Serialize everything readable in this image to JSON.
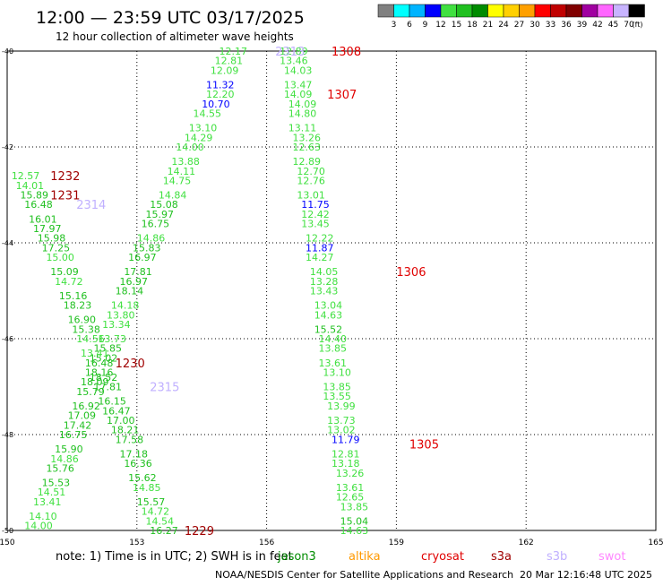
{
  "header": {
    "title": "12:00 — 23:59 UTC 03/17/2025",
    "subtitle": "12 hour collection of altimeter wave heights"
  },
  "legend": {
    "colors": [
      "#808080",
      "#00ffff",
      "#00b4ff",
      "#0000ff",
      "#40e040",
      "#20c020",
      "#008c00",
      "#ffff00",
      "#ffd000",
      "#ffa000",
      "#ff0000",
      "#c00000",
      "#800000",
      "#a000a0",
      "#ff66ff",
      "#c8b4ff",
      "#000000"
    ],
    "labels": [
      "3",
      "6",
      "9",
      "12",
      "15",
      "18",
      "21",
      "24",
      "27",
      "30",
      "33",
      "36",
      "39",
      "42",
      "45",
      "70"
    ],
    "unit": "(ft)"
  },
  "footer": {
    "note": "note:  1) Time is in UTC; 2) SWH is in feet",
    "satellites": [
      {
        "name": "jason3",
        "color": "#008c00"
      },
      {
        "name": "altika",
        "color": "#ff9900"
      },
      {
        "name": "cryosat",
        "color": "#e00000"
      },
      {
        "name": "s3a",
        "color": "#a00000"
      },
      {
        "name": "s3b",
        "color": "#c0b0ff"
      },
      {
        "name": "swot",
        "color": "#ff88ff"
      }
    ],
    "credit": "NOAA/NESDIS Center for Satellite Applications and Research",
    "timestamp": "20 Mar 12:16:48 UTC 2025"
  },
  "chart_data": {
    "type": "scatter",
    "title": "12:00 — 23:59 UTC 03/17/2025",
    "subtitle": "12 hour collection of altimeter wave heights",
    "x_ticks": [
      "150",
      "153",
      "156",
      "159",
      "162",
      "165"
    ],
    "y_ticks": [
      "-40",
      "-42",
      "-44",
      "-46",
      "-48",
      "-50"
    ],
    "xlim": [
      150,
      165
    ],
    "ylim": [
      -50,
      -40
    ],
    "grid": true,
    "tracks": [
      {
        "satellite": "s3b",
        "label": "2313",
        "label_pos": [
          156.2,
          -40.0
        ]
      },
      {
        "satellite": "s3b",
        "label": "2314",
        "label_pos": [
          151.6,
          -43.2
        ]
      },
      {
        "satellite": "s3b",
        "label": "2315",
        "label_pos": [
          153.3,
          -47.0
        ]
      },
      {
        "satellite": "cryosat",
        "label": "1308",
        "label_pos": [
          157.5,
          -40.0
        ]
      },
      {
        "satellite": "cryosat",
        "label": "1307",
        "label_pos": [
          157.4,
          -40.9
        ]
      },
      {
        "satellite": "cryosat",
        "label": "1306",
        "label_pos": [
          159.0,
          -44.6
        ]
      },
      {
        "satellite": "cryosat",
        "label": "1305",
        "label_pos": [
          159.3,
          -48.2
        ]
      },
      {
        "satellite": "s3a",
        "label": "1232",
        "label_pos": [
          151.0,
          -42.6
        ]
      },
      {
        "satellite": "s3a",
        "label": "1231",
        "label_pos": [
          151.0,
          -43.0
        ]
      },
      {
        "satellite": "s3a",
        "label": "1230",
        "label_pos": [
          152.5,
          -46.5
        ]
      },
      {
        "satellite": "s3a",
        "label": "1229",
        "label_pos": [
          154.1,
          -50.0
        ]
      }
    ],
    "points": [
      {
        "x": 154.9,
        "y": -40.0,
        "v": "12.17",
        "c": "#40e040"
      },
      {
        "x": 154.8,
        "y": -40.2,
        "v": "12.81",
        "c": "#40e040"
      },
      {
        "x": 154.7,
        "y": -40.4,
        "v": "12.09",
        "c": "#40e040"
      },
      {
        "x": 154.6,
        "y": -40.7,
        "v": "11.32",
        "c": "#0000ff"
      },
      {
        "x": 154.6,
        "y": -40.9,
        "v": "12.20",
        "c": "#40e040"
      },
      {
        "x": 154.5,
        "y": -41.1,
        "v": "10.70",
        "c": "#0000ff"
      },
      {
        "x": 154.3,
        "y": -41.3,
        "v": "14.55",
        "c": "#40e040"
      },
      {
        "x": 154.2,
        "y": -41.6,
        "v": "13.10",
        "c": "#40e040"
      },
      {
        "x": 154.1,
        "y": -41.8,
        "v": "14.29",
        "c": "#40e040"
      },
      {
        "x": 153.9,
        "y": -42.0,
        "v": "14.00",
        "c": "#40e040"
      },
      {
        "x": 153.8,
        "y": -42.3,
        "v": "13.88",
        "c": "#40e040"
      },
      {
        "x": 153.7,
        "y": -42.5,
        "v": "14.11",
        "c": "#40e040"
      },
      {
        "x": 153.6,
        "y": -42.7,
        "v": "14.75",
        "c": "#40e040"
      },
      {
        "x": 153.5,
        "y": -43.0,
        "v": "14.84",
        "c": "#40e040"
      },
      {
        "x": 153.3,
        "y": -43.2,
        "v": "15.08",
        "c": "#20c020"
      },
      {
        "x": 153.2,
        "y": -43.4,
        "v": "15.97",
        "c": "#20c020"
      },
      {
        "x": 153.1,
        "y": -43.6,
        "v": "16.75",
        "c": "#20c020"
      },
      {
        "x": 153.0,
        "y": -43.9,
        "v": "14.86",
        "c": "#40e040"
      },
      {
        "x": 152.9,
        "y": -44.1,
        "v": "15.83",
        "c": "#20c020"
      },
      {
        "x": 152.8,
        "y": -44.3,
        "v": "16.97",
        "c": "#20c020"
      },
      {
        "x": 152.7,
        "y": -44.6,
        "v": "17.81",
        "c": "#20c020"
      },
      {
        "x": 152.6,
        "y": -44.8,
        "v": "16.97",
        "c": "#20c020"
      },
      {
        "x": 152.5,
        "y": -45.0,
        "v": "18.14",
        "c": "#20c020"
      },
      {
        "x": 152.4,
        "y": -45.3,
        "v": "14.18",
        "c": "#40e040"
      },
      {
        "x": 152.3,
        "y": -45.5,
        "v": "13.80",
        "c": "#40e040"
      },
      {
        "x": 152.2,
        "y": -45.7,
        "v": "13.34",
        "c": "#40e040"
      },
      {
        "x": 152.1,
        "y": -46.0,
        "v": "13.73",
        "c": "#40e040"
      },
      {
        "x": 152.0,
        "y": -46.2,
        "v": "15.85",
        "c": "#20c020"
      },
      {
        "x": 151.9,
        "y": -46.4,
        "v": "15.02",
        "c": "#20c020"
      },
      {
        "x": 151.8,
        "y": -46.7,
        "v": "18.16",
        "c": "#20c020"
      },
      {
        "x": 151.7,
        "y": -46.9,
        "v": "18.09",
        "c": "#20c020"
      },
      {
        "x": 151.6,
        "y": -47.1,
        "v": "15.79",
        "c": "#20c020"
      },
      {
        "x": 151.5,
        "y": -47.4,
        "v": "16.92",
        "c": "#20c020"
      },
      {
        "x": 151.4,
        "y": -47.6,
        "v": "17.09",
        "c": "#20c020"
      },
      {
        "x": 151.3,
        "y": -47.8,
        "v": "17.42",
        "c": "#20c020"
      },
      {
        "x": 151.2,
        "y": -48.0,
        "v": "16.75",
        "c": "#20c020"
      },
      {
        "x": 151.1,
        "y": -48.3,
        "v": "15.90",
        "c": "#20c020"
      },
      {
        "x": 151.0,
        "y": -48.5,
        "v": "14.86",
        "c": "#40e040"
      },
      {
        "x": 150.9,
        "y": -48.7,
        "v": "15.76",
        "c": "#20c020"
      },
      {
        "x": 150.8,
        "y": -49.0,
        "v": "15.53",
        "c": "#20c020"
      },
      {
        "x": 150.7,
        "y": -49.2,
        "v": "14.51",
        "c": "#40e040"
      },
      {
        "x": 150.6,
        "y": -49.4,
        "v": "13.41",
        "c": "#40e040"
      },
      {
        "x": 150.5,
        "y": -49.7,
        "v": "14.10",
        "c": "#40e040"
      },
      {
        "x": 150.4,
        "y": -49.9,
        "v": "14.00",
        "c": "#40e040"
      },
      {
        "x": 156.3,
        "y": -40.0,
        "v": "12.89",
        "c": "#40e040"
      },
      {
        "x": 156.3,
        "y": -40.2,
        "v": "13.46",
        "c": "#40e040"
      },
      {
        "x": 156.4,
        "y": -40.4,
        "v": "14.03",
        "c": "#40e040"
      },
      {
        "x": 156.4,
        "y": -40.7,
        "v": "13.47",
        "c": "#40e040"
      },
      {
        "x": 156.4,
        "y": -40.9,
        "v": "14.09",
        "c": "#40e040"
      },
      {
        "x": 156.5,
        "y": -41.1,
        "v": "14.09",
        "c": "#40e040"
      },
      {
        "x": 156.5,
        "y": -41.3,
        "v": "14.80",
        "c": "#40e040"
      },
      {
        "x": 156.5,
        "y": -41.6,
        "v": "13.11",
        "c": "#40e040"
      },
      {
        "x": 156.6,
        "y": -41.8,
        "v": "13.26",
        "c": "#40e040"
      },
      {
        "x": 156.6,
        "y": -42.0,
        "v": "12.63",
        "c": "#40e040"
      },
      {
        "x": 156.6,
        "y": -42.3,
        "v": "12.89",
        "c": "#40e040"
      },
      {
        "x": 156.7,
        "y": -42.5,
        "v": "12.70",
        "c": "#40e040"
      },
      {
        "x": 156.7,
        "y": -42.7,
        "v": "12.76",
        "c": "#40e040"
      },
      {
        "x": 156.7,
        "y": -43.0,
        "v": "13.01",
        "c": "#40e040"
      },
      {
        "x": 156.8,
        "y": -43.2,
        "v": "11.75",
        "c": "#0000ff"
      },
      {
        "x": 156.8,
        "y": -43.4,
        "v": "12.42",
        "c": "#40e040"
      },
      {
        "x": 156.8,
        "y": -43.6,
        "v": "13.45",
        "c": "#40e040"
      },
      {
        "x": 156.9,
        "y": -43.9,
        "v": "12.22",
        "c": "#40e040"
      },
      {
        "x": 156.9,
        "y": -44.1,
        "v": "11.87",
        "c": "#0000ff"
      },
      {
        "x": 156.9,
        "y": -44.3,
        "v": "14.27",
        "c": "#40e040"
      },
      {
        "x": 157.0,
        "y": -44.6,
        "v": "14.05",
        "c": "#40e040"
      },
      {
        "x": 157.0,
        "y": -44.8,
        "v": "13.28",
        "c": "#40e040"
      },
      {
        "x": 157.0,
        "y": -45.0,
        "v": "13.43",
        "c": "#40e040"
      },
      {
        "x": 157.1,
        "y": -45.3,
        "v": "13.04",
        "c": "#40e040"
      },
      {
        "x": 157.1,
        "y": -45.5,
        "v": "14.63",
        "c": "#40e040"
      },
      {
        "x": 157.1,
        "y": -45.8,
        "v": "15.52",
        "c": "#20c020"
      },
      {
        "x": 157.2,
        "y": -46.0,
        "v": "14.40",
        "c": "#40e040"
      },
      {
        "x": 157.2,
        "y": -46.2,
        "v": "13.85",
        "c": "#40e040"
      },
      {
        "x": 157.2,
        "y": -46.5,
        "v": "13.61",
        "c": "#40e040"
      },
      {
        "x": 157.3,
        "y": -46.7,
        "v": "13.10",
        "c": "#40e040"
      },
      {
        "x": 157.3,
        "y": -47.0,
        "v": "13.85",
        "c": "#40e040"
      },
      {
        "x": 157.3,
        "y": -47.2,
        "v": "13.55",
        "c": "#40e040"
      },
      {
        "x": 157.4,
        "y": -47.4,
        "v": "13.99",
        "c": "#40e040"
      },
      {
        "x": 157.4,
        "y": -47.7,
        "v": "13.73",
        "c": "#40e040"
      },
      {
        "x": 157.4,
        "y": -47.9,
        "v": "13.02",
        "c": "#40e040"
      },
      {
        "x": 157.5,
        "y": -48.1,
        "v": "11.79",
        "c": "#0000ff"
      },
      {
        "x": 157.5,
        "y": -48.4,
        "v": "12.81",
        "c": "#40e040"
      },
      {
        "x": 157.5,
        "y": -48.6,
        "v": "13.18",
        "c": "#40e040"
      },
      {
        "x": 157.6,
        "y": -48.8,
        "v": "13.26",
        "c": "#40e040"
      },
      {
        "x": 157.6,
        "y": -49.1,
        "v": "13.61",
        "c": "#40e040"
      },
      {
        "x": 157.6,
        "y": -49.3,
        "v": "12.65",
        "c": "#40e040"
      },
      {
        "x": 157.7,
        "y": -49.5,
        "v": "13.85",
        "c": "#40e040"
      },
      {
        "x": 157.7,
        "y": -49.8,
        "v": "15.04",
        "c": "#20c020"
      },
      {
        "x": 157.7,
        "y": -50.0,
        "v": "14.63",
        "c": "#40e040"
      },
      {
        "x": 150.1,
        "y": -42.6,
        "v": "12.57",
        "c": "#40e040"
      },
      {
        "x": 150.2,
        "y": -42.8,
        "v": "14.01",
        "c": "#40e040"
      },
      {
        "x": 150.3,
        "y": -43.0,
        "v": "15.89",
        "c": "#20c020"
      },
      {
        "x": 150.4,
        "y": -43.2,
        "v": "16.48",
        "c": "#20c020"
      },
      {
        "x": 150.5,
        "y": -43.5,
        "v": "16.01",
        "c": "#20c020"
      },
      {
        "x": 150.6,
        "y": -43.7,
        "v": "17.97",
        "c": "#20c020"
      },
      {
        "x": 150.7,
        "y": -43.9,
        "v": "15.98",
        "c": "#20c020"
      },
      {
        "x": 150.8,
        "y": -44.1,
        "v": "17.25",
        "c": "#20c020"
      },
      {
        "x": 150.9,
        "y": -44.3,
        "v": "15.00",
        "c": "#40e040"
      },
      {
        "x": 151.0,
        "y": -44.6,
        "v": "15.09",
        "c": "#20c020"
      },
      {
        "x": 151.1,
        "y": -44.8,
        "v": "14.72",
        "c": "#40e040"
      },
      {
        "x": 151.2,
        "y": -45.1,
        "v": "15.16",
        "c": "#20c020"
      },
      {
        "x": 151.3,
        "y": -45.3,
        "v": "18.23",
        "c": "#20c020"
      },
      {
        "x": 151.4,
        "y": -45.6,
        "v": "16.90",
        "c": "#20c020"
      },
      {
        "x": 151.5,
        "y": -45.8,
        "v": "15.38",
        "c": "#20c020"
      },
      {
        "x": 151.6,
        "y": -46.0,
        "v": "14.56",
        "c": "#40e040"
      },
      {
        "x": 151.7,
        "y": -46.3,
        "v": "13.41",
        "c": "#40e040"
      },
      {
        "x": 151.8,
        "y": -46.5,
        "v": "16.48",
        "c": "#20c020"
      },
      {
        "x": 151.9,
        "y": -46.8,
        "v": "18.52",
        "c": "#20c020"
      },
      {
        "x": 152.0,
        "y": -47.0,
        "v": "17.81",
        "c": "#20c020"
      },
      {
        "x": 152.1,
        "y": -47.3,
        "v": "16.15",
        "c": "#20c020"
      },
      {
        "x": 152.2,
        "y": -47.5,
        "v": "16.47",
        "c": "#20c020"
      },
      {
        "x": 152.3,
        "y": -47.7,
        "v": "17.00",
        "c": "#20c020"
      },
      {
        "x": 152.4,
        "y": -47.9,
        "v": "18.21",
        "c": "#20c020"
      },
      {
        "x": 152.5,
        "y": -48.1,
        "v": "17.58",
        "c": "#20c020"
      },
      {
        "x": 152.6,
        "y": -48.4,
        "v": "17.18",
        "c": "#20c020"
      },
      {
        "x": 152.7,
        "y": -48.6,
        "v": "16.36",
        "c": "#20c020"
      },
      {
        "x": 152.8,
        "y": -48.9,
        "v": "15.62",
        "c": "#20c020"
      },
      {
        "x": 152.9,
        "y": -49.1,
        "v": "14.85",
        "c": "#40e040"
      },
      {
        "x": 153.0,
        "y": -49.4,
        "v": "15.57",
        "c": "#20c020"
      },
      {
        "x": 153.1,
        "y": -49.6,
        "v": "14.72",
        "c": "#40e040"
      },
      {
        "x": 153.2,
        "y": -49.8,
        "v": "14.54",
        "c": "#40e040"
      },
      {
        "x": 153.3,
        "y": -50.0,
        "v": "16.27",
        "c": "#20c020"
      }
    ]
  }
}
